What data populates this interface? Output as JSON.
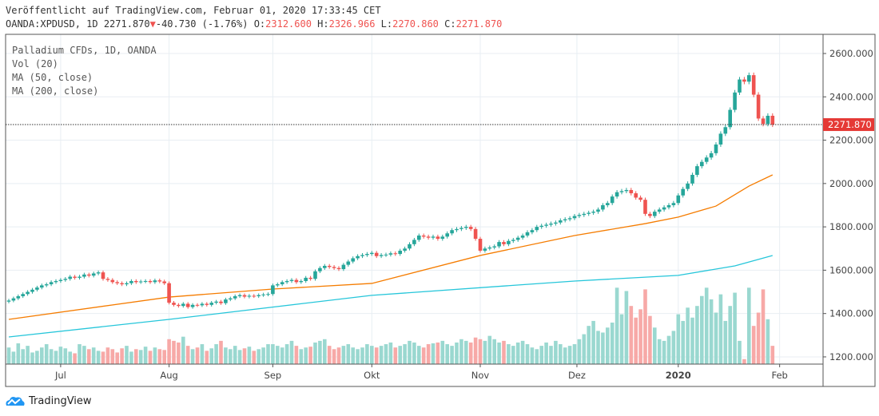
{
  "header": {
    "published": "Veröffentlicht auf TradingView.com, Februar 01, 2020 17:33:45 CET",
    "symbol": "OANDA:XPDUSD, 1D 2271.870",
    "change": "-40.730 (-1.76%)",
    "o_label": "O:",
    "o": "2312.600",
    "h_label": "H:",
    "h": "2326.966",
    "l_label": "L:",
    "l": "2270.860",
    "c_label": "C:",
    "c": "2271.870"
  },
  "legend": [
    "Palladium CFDs, 1D, OANDA",
    "Vol (20)",
    "MA (50, close)",
    "MA (200, close)"
  ],
  "logo": "TradingView",
  "colors": {
    "up": "#26a69a",
    "down": "#ef5350",
    "vol_up": "#9ad8d0",
    "vol_down": "#f7a9a7",
    "ma50": "#f57c00",
    "ma200": "#26c6da",
    "grid": "#e8eef3"
  },
  "chart_data": {
    "type": "candlestick",
    "title": "Palladium CFDs, 1D, OANDA",
    "last_price_label": "2271.870",
    "last_price": 2271.87,
    "ylim": [
      1160,
      2690
    ],
    "y_ticks": [
      {
        "v": 2600,
        "label": "2600.000"
      },
      {
        "v": 2400,
        "label": "2400.000"
      },
      {
        "v": 2200,
        "label": "2200.000"
      },
      {
        "v": 2000,
        "label": "2000.000"
      },
      {
        "v": 1800,
        "label": "1800.000"
      },
      {
        "v": 1600,
        "label": "1600.000"
      },
      {
        "v": 1400,
        "label": "1400.000"
      },
      {
        "v": 1200,
        "label": "1200.000"
      }
    ],
    "x_ticks": [
      {
        "i": 11,
        "label": "Jul",
        "bold": false
      },
      {
        "i": 34,
        "label": "Aug",
        "bold": false
      },
      {
        "i": 56,
        "label": "Sep",
        "bold": false
      },
      {
        "i": 77,
        "label": "Okt",
        "bold": false
      },
      {
        "i": 100,
        "label": "Nov",
        "bold": false
      },
      {
        "i": 120.5,
        "label": "Dez",
        "bold": false
      },
      {
        "i": 142,
        "label": "2020",
        "bold": true
      },
      {
        "i": 163.5,
        "label": "Feb",
        "bold": false
      }
    ],
    "first_open": 1455,
    "closes": [
      1460,
      1470,
      1480,
      1490,
      1500,
      1510,
      1520,
      1530,
      1535,
      1545,
      1550,
      1555,
      1560,
      1570,
      1565,
      1570,
      1580,
      1575,
      1585,
      1590,
      1560,
      1555,
      1545,
      1540,
      1535,
      1540,
      1550,
      1545,
      1548,
      1550,
      1545,
      1553,
      1548,
      1540,
      1450,
      1440,
      1435,
      1445,
      1430,
      1440,
      1438,
      1445,
      1440,
      1450,
      1455,
      1448,
      1465,
      1470,
      1480,
      1485,
      1478,
      1482,
      1480,
      1485,
      1488,
      1490,
      1530,
      1535,
      1545,
      1550,
      1555,
      1545,
      1550,
      1565,
      1560,
      1595,
      1610,
      1620,
      1615,
      1610,
      1605,
      1625,
      1640,
      1655,
      1665,
      1670,
      1675,
      1680,
      1665,
      1670,
      1672,
      1678,
      1675,
      1690,
      1700,
      1720,
      1740,
      1760,
      1755,
      1750,
      1755,
      1745,
      1755,
      1770,
      1785,
      1790,
      1795,
      1800,
      1790,
      1745,
      1690,
      1700,
      1705,
      1710,
      1730,
      1720,
      1735,
      1740,
      1750,
      1760,
      1775,
      1785,
      1800,
      1805,
      1810,
      1815,
      1820,
      1830,
      1835,
      1840,
      1850,
      1855,
      1860,
      1865,
      1870,
      1880,
      1900,
      1910,
      1940,
      1960,
      1965,
      1970,
      1955,
      1935,
      1925,
      1860,
      1850,
      1870,
      1880,
      1890,
      1900,
      1910,
      1945,
      1975,
      2000,
      2040,
      2080,
      2100,
      2120,
      2140,
      2180,
      2230,
      2260,
      2340,
      2420,
      2480,
      2470,
      2500,
      2410,
      2300,
      2275,
      2312.6,
      2271.87
    ],
    "volume_relative": [
      20,
      15,
      25,
      18,
      22,
      14,
      16,
      20,
      24,
      18,
      16,
      21,
      19,
      15,
      13,
      24,
      22,
      18,
      20,
      16,
      15,
      20,
      18,
      14,
      19,
      22,
      15,
      18,
      17,
      21,
      16,
      20,
      18,
      17,
      30,
      28,
      26,
      33,
      22,
      18,
      20,
      24,
      16,
      19,
      24,
      28,
      20,
      18,
      22,
      17,
      19,
      21,
      16,
      18,
      20,
      24,
      24,
      22,
      20,
      24,
      28,
      22,
      18,
      20,
      21,
      26,
      28,
      30,
      22,
      18,
      20,
      22,
      24,
      20,
      18,
      20,
      24,
      22,
      20,
      22,
      24,
      26,
      20,
      22,
      24,
      28,
      26,
      22,
      20,
      24,
      25,
      26,
      28,
      24,
      22,
      26,
      30,
      28,
      26,
      32,
      30,
      28,
      34,
      30,
      26,
      28,
      24,
      22,
      26,
      28,
      24,
      20,
      18,
      22,
      26,
      22,
      28,
      24,
      20,
      22,
      24,
      30,
      36,
      46,
      52,
      40,
      38,
      44,
      50,
      92,
      60,
      88,
      70,
      56,
      66,
      90,
      58,
      44,
      30,
      28,
      34,
      40,
      60,
      52,
      68,
      56,
      70,
      82,
      92,
      78,
      62,
      84,
      52,
      70,
      86,
      28,
      6,
      92,
      46,
      62,
      90,
      54,
      22
    ],
    "ma50": [
      [
        0,
        1373
      ],
      [
        34,
        1476
      ],
      [
        56,
        1513
      ],
      [
        77,
        1539
      ],
      [
        100,
        1668
      ],
      [
        120,
        1760
      ],
      [
        135,
        1815
      ],
      [
        142,
        1845
      ],
      [
        150,
        1896
      ],
      [
        157,
        1988
      ],
      [
        162,
        2040
      ]
    ],
    "ma200": [
      [
        0,
        1292
      ],
      [
        34,
        1373
      ],
      [
        77,
        1484
      ],
      [
        120,
        1550
      ],
      [
        142,
        1576
      ],
      [
        154,
        1620
      ],
      [
        162,
        1668
      ]
    ]
  }
}
